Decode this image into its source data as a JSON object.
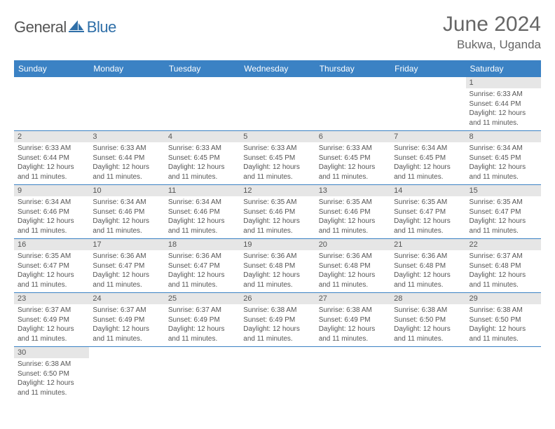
{
  "logo": {
    "part1": "General",
    "part2": "Blue"
  },
  "title": "June 2024",
  "location": "Bukwa, Uganda",
  "colors": {
    "header_bg": "#3b82c4",
    "header_text": "#ffffff",
    "daynum_bg": "#e6e6e6",
    "text": "#555555",
    "accent": "#2f6fa8",
    "border": "#3b82c4"
  },
  "weekdays": [
    "Sunday",
    "Monday",
    "Tuesday",
    "Wednesday",
    "Thursday",
    "Friday",
    "Saturday"
  ],
  "first_weekday_index": 6,
  "days": [
    {
      "n": 1,
      "sunrise": "6:33 AM",
      "sunset": "6:44 PM",
      "daylight": "12 hours and 11 minutes."
    },
    {
      "n": 2,
      "sunrise": "6:33 AM",
      "sunset": "6:44 PM",
      "daylight": "12 hours and 11 minutes."
    },
    {
      "n": 3,
      "sunrise": "6:33 AM",
      "sunset": "6:44 PM",
      "daylight": "12 hours and 11 minutes."
    },
    {
      "n": 4,
      "sunrise": "6:33 AM",
      "sunset": "6:45 PM",
      "daylight": "12 hours and 11 minutes."
    },
    {
      "n": 5,
      "sunrise": "6:33 AM",
      "sunset": "6:45 PM",
      "daylight": "12 hours and 11 minutes."
    },
    {
      "n": 6,
      "sunrise": "6:33 AM",
      "sunset": "6:45 PM",
      "daylight": "12 hours and 11 minutes."
    },
    {
      "n": 7,
      "sunrise": "6:34 AM",
      "sunset": "6:45 PM",
      "daylight": "12 hours and 11 minutes."
    },
    {
      "n": 8,
      "sunrise": "6:34 AM",
      "sunset": "6:45 PM",
      "daylight": "12 hours and 11 minutes."
    },
    {
      "n": 9,
      "sunrise": "6:34 AM",
      "sunset": "6:46 PM",
      "daylight": "12 hours and 11 minutes."
    },
    {
      "n": 10,
      "sunrise": "6:34 AM",
      "sunset": "6:46 PM",
      "daylight": "12 hours and 11 minutes."
    },
    {
      "n": 11,
      "sunrise": "6:34 AM",
      "sunset": "6:46 PM",
      "daylight": "12 hours and 11 minutes."
    },
    {
      "n": 12,
      "sunrise": "6:35 AM",
      "sunset": "6:46 PM",
      "daylight": "12 hours and 11 minutes."
    },
    {
      "n": 13,
      "sunrise": "6:35 AM",
      "sunset": "6:46 PM",
      "daylight": "12 hours and 11 minutes."
    },
    {
      "n": 14,
      "sunrise": "6:35 AM",
      "sunset": "6:47 PM",
      "daylight": "12 hours and 11 minutes."
    },
    {
      "n": 15,
      "sunrise": "6:35 AM",
      "sunset": "6:47 PM",
      "daylight": "12 hours and 11 minutes."
    },
    {
      "n": 16,
      "sunrise": "6:35 AM",
      "sunset": "6:47 PM",
      "daylight": "12 hours and 11 minutes."
    },
    {
      "n": 17,
      "sunrise": "6:36 AM",
      "sunset": "6:47 PM",
      "daylight": "12 hours and 11 minutes."
    },
    {
      "n": 18,
      "sunrise": "6:36 AM",
      "sunset": "6:47 PM",
      "daylight": "12 hours and 11 minutes."
    },
    {
      "n": 19,
      "sunrise": "6:36 AM",
      "sunset": "6:48 PM",
      "daylight": "12 hours and 11 minutes."
    },
    {
      "n": 20,
      "sunrise": "6:36 AM",
      "sunset": "6:48 PM",
      "daylight": "12 hours and 11 minutes."
    },
    {
      "n": 21,
      "sunrise": "6:36 AM",
      "sunset": "6:48 PM",
      "daylight": "12 hours and 11 minutes."
    },
    {
      "n": 22,
      "sunrise": "6:37 AM",
      "sunset": "6:48 PM",
      "daylight": "12 hours and 11 minutes."
    },
    {
      "n": 23,
      "sunrise": "6:37 AM",
      "sunset": "6:49 PM",
      "daylight": "12 hours and 11 minutes."
    },
    {
      "n": 24,
      "sunrise": "6:37 AM",
      "sunset": "6:49 PM",
      "daylight": "12 hours and 11 minutes."
    },
    {
      "n": 25,
      "sunrise": "6:37 AM",
      "sunset": "6:49 PM",
      "daylight": "12 hours and 11 minutes."
    },
    {
      "n": 26,
      "sunrise": "6:38 AM",
      "sunset": "6:49 PM",
      "daylight": "12 hours and 11 minutes."
    },
    {
      "n": 27,
      "sunrise": "6:38 AM",
      "sunset": "6:49 PM",
      "daylight": "12 hours and 11 minutes."
    },
    {
      "n": 28,
      "sunrise": "6:38 AM",
      "sunset": "6:50 PM",
      "daylight": "12 hours and 11 minutes."
    },
    {
      "n": 29,
      "sunrise": "6:38 AM",
      "sunset": "6:50 PM",
      "daylight": "12 hours and 11 minutes."
    },
    {
      "n": 30,
      "sunrise": "6:38 AM",
      "sunset": "6:50 PM",
      "daylight": "12 hours and 11 minutes."
    }
  ],
  "labels": {
    "sunrise": "Sunrise:",
    "sunset": "Sunset:",
    "daylight": "Daylight:"
  }
}
